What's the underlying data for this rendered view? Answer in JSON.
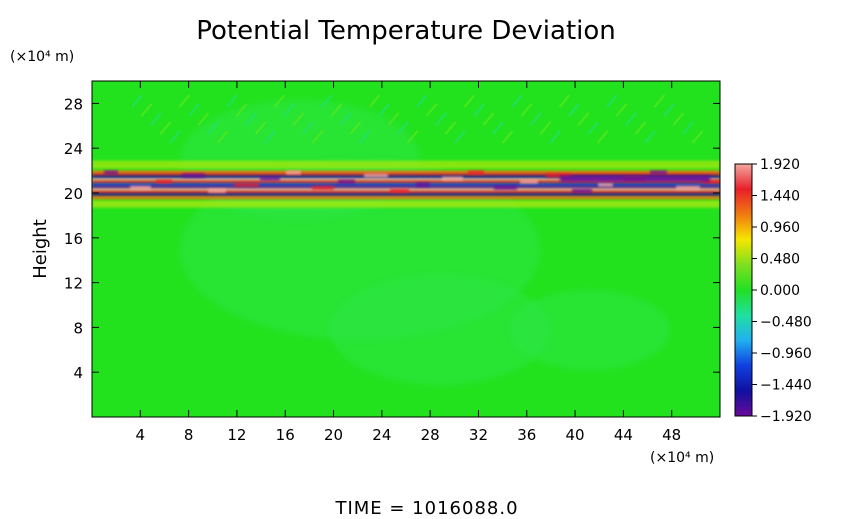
{
  "chart_data": {
    "type": "heatmap",
    "title": "Potential Temperature Deviation",
    "ylabel": "Height",
    "y_unit_label": "(×10⁴ m)",
    "x_unit_label": "(×10⁴ m)",
    "footer": "TIME  =  1016088.0",
    "xlim": [
      0,
      52
    ],
    "ylim": [
      0,
      30
    ],
    "x_ticks": [
      "4",
      "8",
      "12",
      "16",
      "20",
      "24",
      "28",
      "32",
      "36",
      "40",
      "44",
      "48"
    ],
    "x_tick_values": [
      4,
      8,
      12,
      16,
      20,
      24,
      28,
      32,
      36,
      40,
      44,
      48
    ],
    "y_ticks": [
      "4",
      "8",
      "12",
      "16",
      "20",
      "24",
      "28"
    ],
    "y_tick_values": [
      4,
      8,
      12,
      16,
      20,
      24,
      28
    ],
    "colorbar": {
      "range": [
        -1.92,
        1.92
      ],
      "labels": [
        "1.920",
        "1.440",
        "0.960",
        "0.480",
        "0.000",
        "−0.480",
        "−0.960",
        "−1.440",
        "−1.920"
      ],
      "label_values": [
        1.92,
        1.44,
        0.96,
        0.48,
        0.0,
        -0.48,
        -0.96,
        -1.44,
        -1.92
      ],
      "colors": [
        "#f4a8a0",
        "#e8202a",
        "#f07a10",
        "#f6e600",
        "#7ee020",
        "#22e022",
        "#20e0a0",
        "#20b0f0",
        "#1040e0",
        "#1010a0",
        "#6a0a9a"
      ]
    },
    "field_description": "Background near 0 (green). Strong alternating positive/negative layer near height 20-22.",
    "strong_band_y": [
      19.5,
      22.0
    ]
  }
}
